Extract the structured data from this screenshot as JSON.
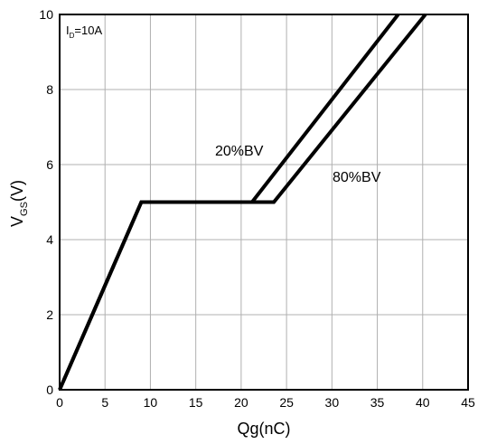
{
  "chart_data": {
    "type": "line",
    "xlabel": "Qg(nC)",
    "ylabel": {
      "main": "V",
      "sub": "GS",
      "unit": "(V)"
    },
    "xlim": [
      0,
      45
    ],
    "ylim": [
      0,
      10
    ],
    "xticks": [
      0,
      5,
      10,
      15,
      20,
      25,
      30,
      35,
      40,
      45
    ],
    "yticks": [
      0,
      2,
      4,
      6,
      8,
      10
    ],
    "grid": true,
    "condition": {
      "main": "I",
      "sub": "D",
      "rest": "=10A"
    },
    "series": [
      {
        "name": "20%BV",
        "x": [
          0,
          9,
          21.2,
          37.3
        ],
        "y": [
          0,
          5,
          5,
          10
        ]
      },
      {
        "name": "80%BV",
        "x": [
          0,
          9,
          23.6,
          40.3
        ],
        "y": [
          0,
          5,
          5,
          10
        ]
      }
    ]
  }
}
